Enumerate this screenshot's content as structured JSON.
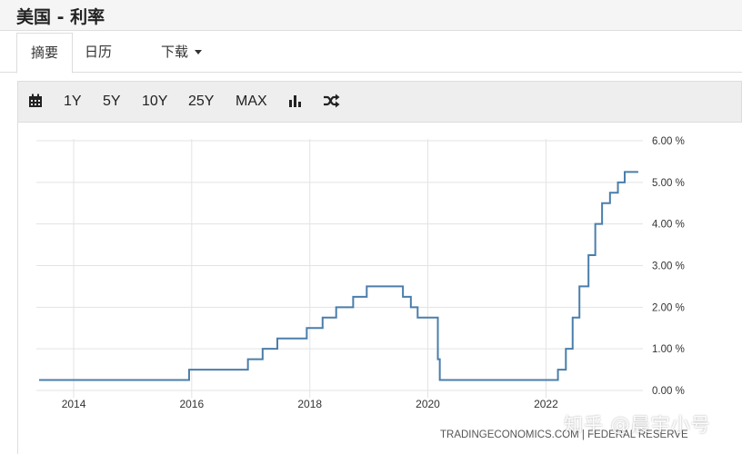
{
  "page": {
    "title": "美国 - 利率"
  },
  "tabs": [
    {
      "label": "摘要",
      "active": true
    },
    {
      "label": "日历",
      "active": false
    },
    {
      "label": "下载",
      "active": false
    }
  ],
  "toolbar": {
    "ranges": [
      "1Y",
      "5Y",
      "10Y",
      "25Y",
      "MAX"
    ],
    "icons": [
      "calendar-icon",
      "bar-chart-icon",
      "shuffle-icon"
    ]
  },
  "source": "TRADINGECONOMICS.COM | FEDERAL RESERVE",
  "watermark": "知乎 @晨宇小号",
  "colors": {
    "line": "#4a7eab",
    "grid": "#e3e3e3",
    "axis_text": "#333333"
  },
  "chart_data": {
    "type": "line",
    "step": true,
    "title": "",
    "xlabel": "",
    "ylabel": "",
    "x_ticks": [
      "2014",
      "2016",
      "2018",
      "2020",
      "2022"
    ],
    "y_ticks": [
      "0.00 %",
      "1.00 %",
      "2.00 %",
      "3.00 %",
      "4.00 %",
      "5.00 %",
      "6.00 %"
    ],
    "xlim": [
      "2013-06-01",
      "2023-08-01"
    ],
    "ylim": [
      0,
      6
    ],
    "grid": true,
    "y_axis_position": "right",
    "series": [
      {
        "values": [
          {
            "x": "2013-06-01",
            "y": 0.25
          },
          {
            "x": "2015-12-16",
            "y": 0.5
          },
          {
            "x": "2016-12-14",
            "y": 0.75
          },
          {
            "x": "2017-03-15",
            "y": 1.0
          },
          {
            "x": "2017-06-14",
            "y": 1.25
          },
          {
            "x": "2017-12-13",
            "y": 1.5
          },
          {
            "x": "2018-03-21",
            "y": 1.75
          },
          {
            "x": "2018-06-13",
            "y": 2.0
          },
          {
            "x": "2018-09-26",
            "y": 2.25
          },
          {
            "x": "2018-12-19",
            "y": 2.5
          },
          {
            "x": "2019-07-31",
            "y": 2.25
          },
          {
            "x": "2019-09-18",
            "y": 2.0
          },
          {
            "x": "2019-10-30",
            "y": 1.75
          },
          {
            "x": "2020-03-03",
            "y": 0.75
          },
          {
            "x": "2020-03-15",
            "y": 0.25
          },
          {
            "x": "2022-03-16",
            "y": 0.5
          },
          {
            "x": "2022-05-04",
            "y": 1.0
          },
          {
            "x": "2022-06-15",
            "y": 1.75
          },
          {
            "x": "2022-07-27",
            "y": 2.5
          },
          {
            "x": "2022-09-21",
            "y": 3.25
          },
          {
            "x": "2022-11-02",
            "y": 4.0
          },
          {
            "x": "2022-12-14",
            "y": 4.5
          },
          {
            "x": "2023-02-01",
            "y": 4.75
          },
          {
            "x": "2023-03-22",
            "y": 5.0
          },
          {
            "x": "2023-05-03",
            "y": 5.25
          },
          {
            "x": "2023-07-26",
            "y": 5.25
          }
        ]
      }
    ]
  }
}
